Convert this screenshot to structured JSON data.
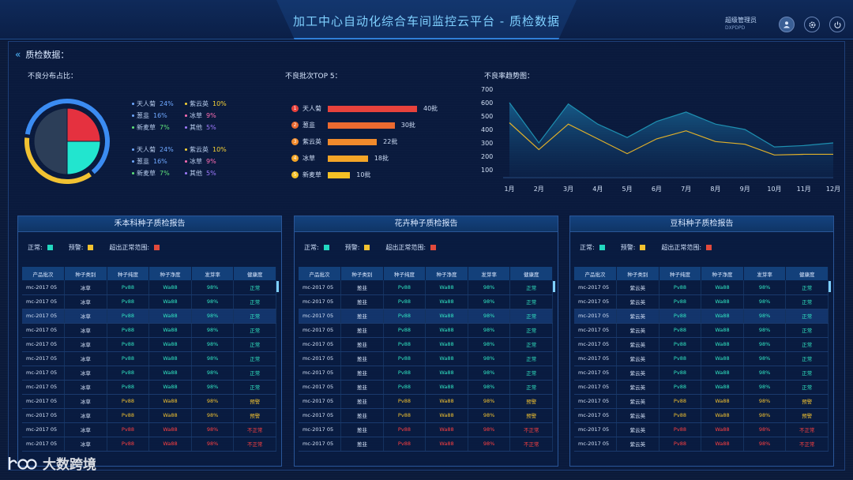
{
  "header": {
    "title": "加工中心自动化综合车间监控云平台 - 质检数据",
    "user_name": "超级管理员",
    "user_id": "DXPDPD"
  },
  "section": {
    "title": "质检数据："
  },
  "defect_distribution": {
    "title": "不良分布占比：",
    "slices": [
      {
        "name": "slice-a",
        "value": 25,
        "color": "#e5313f"
      },
      {
        "name": "slice-b",
        "value": 25,
        "color": "#22e5cf"
      },
      {
        "name": "slice-c",
        "value": 50,
        "color": "#2c3e58"
      }
    ],
    "ring_colors": [
      "#3b8cf2",
      "#f1c232"
    ],
    "legend_groups": [
      [
        [
          {
            "label": "天人菊",
            "pct": "24%",
            "color": "#6fa8ff"
          },
          {
            "label": "紫云英",
            "pct": "10%",
            "color": "#f7d336"
          }
        ],
        [
          {
            "label": "葱韭",
            "pct": "16%",
            "color": "#6fa8ff"
          },
          {
            "label": "冰草",
            "pct": "9%",
            "color": "#ff6db4"
          }
        ],
        [
          {
            "label": "新麦草",
            "pct": "7%",
            "color": "#5ee37a"
          },
          {
            "label": "其他",
            "pct": "5%",
            "color": "#a07bff"
          }
        ]
      ],
      [
        [
          {
            "label": "天人菊",
            "pct": "24%",
            "color": "#6fa8ff"
          },
          {
            "label": "紫云英",
            "pct": "10%",
            "color": "#f7d336"
          }
        ],
        [
          {
            "label": "葱韭",
            "pct": "16%",
            "color": "#6fa8ff"
          },
          {
            "label": "冰草",
            "pct": "9%",
            "color": "#ff6db4"
          }
        ],
        [
          {
            "label": "新麦草",
            "pct": "7%",
            "color": "#5ee37a"
          },
          {
            "label": "其他",
            "pct": "5%",
            "color": "#a07bff"
          }
        ]
      ]
    ]
  },
  "top5": {
    "title": "不良批次TOP 5：",
    "max": 40,
    "items": [
      {
        "rank": "1",
        "name": "天人菊",
        "value": 40,
        "label": "40批",
        "color": "#e8423c"
      },
      {
        "rank": "2",
        "name": "葱韭",
        "value": 30,
        "label": "30批",
        "color": "#ec6a30"
      },
      {
        "rank": "3",
        "name": "紫云英",
        "value": 22,
        "label": "22批",
        "color": "#f08a2c"
      },
      {
        "rank": "4",
        "name": "冰草",
        "value": 18,
        "label": "18批",
        "color": "#f3a527"
      },
      {
        "rank": "5",
        "name": "新麦草",
        "value": 10,
        "label": "10批",
        "color": "#f4c025"
      }
    ]
  },
  "chart_data": {
    "type": "area",
    "title": "不良率趋势图：",
    "categories": [
      "1月",
      "2月",
      "3月",
      "4月",
      "5月",
      "6月",
      "7月",
      "8月",
      "9月",
      "10月",
      "11月",
      "12月"
    ],
    "yticks": [
      "100",
      "200",
      "300",
      "400",
      "500",
      "600",
      "700"
    ],
    "ylim": [
      100,
      700
    ],
    "series": [
      {
        "values": [
          600,
          300,
          590,
          440,
          340,
          460,
          530,
          440,
          400,
          270,
          280,
          300
        ],
        "color": "#1e8fb0"
      },
      {
        "values": [
          450,
          250,
          440,
          330,
          220,
          330,
          390,
          310,
          290,
          210,
          215,
          215
        ],
        "color": "#e0b02a"
      }
    ]
  },
  "legend_labels": {
    "normal": "正常:",
    "warn": "预警:",
    "out": "超出正常范围:"
  },
  "status_colors": {
    "normal": "#22d8c0",
    "warn": "#f2c230",
    "out": "#e24a3c"
  },
  "table_headers": [
    "产品批次",
    "种子类别",
    "种子纯度",
    "种子净度",
    "发芽率",
    "健康度"
  ],
  "panels": [
    {
      "title": "禾本科种子质检报告",
      "rows": [
        {
          "batch": "mc-2017 05",
          "kind": "冰草",
          "purity": "Pv88",
          "clean": "Wa88",
          "rate": "98%",
          "health": "正常",
          "status": "normal"
        },
        {
          "batch": "mc-2017 05",
          "kind": "冰草",
          "purity": "Pv88",
          "clean": "Wa88",
          "rate": "98%",
          "health": "正常",
          "status": "normal"
        },
        {
          "batch": "mc-2017 05",
          "kind": "冰草",
          "purity": "Pv88",
          "clean": "Wa88",
          "rate": "98%",
          "health": "正常",
          "status": "normal"
        },
        {
          "batch": "mc-2017 05",
          "kind": "冰草",
          "purity": "Pv88",
          "clean": "Wa88",
          "rate": "98%",
          "health": "正常",
          "status": "normal"
        },
        {
          "batch": "mc-2017 05",
          "kind": "冰草",
          "purity": "Pv88",
          "clean": "Wa88",
          "rate": "98%",
          "health": "正常",
          "status": "normal"
        },
        {
          "batch": "mc-2017 05",
          "kind": "冰草",
          "purity": "Pv88",
          "clean": "Wa88",
          "rate": "98%",
          "health": "正常",
          "status": "normal"
        },
        {
          "batch": "mc-2017 05",
          "kind": "冰草",
          "purity": "Pv88",
          "clean": "Wa88",
          "rate": "98%",
          "health": "正常",
          "status": "normal"
        },
        {
          "batch": "mc-2017 05",
          "kind": "冰草",
          "purity": "Pv88",
          "clean": "Wa88",
          "rate": "98%",
          "health": "正常",
          "status": "normal"
        },
        {
          "batch": "mc-2017 05",
          "kind": "冰草",
          "purity": "Pv88",
          "clean": "Wa88",
          "rate": "98%",
          "health": "预警",
          "status": "warn"
        },
        {
          "batch": "mc-2017 05",
          "kind": "冰草",
          "purity": "Pv88",
          "clean": "Wa88",
          "rate": "98%",
          "health": "预警",
          "status": "warn"
        },
        {
          "batch": "mc-2017 05",
          "kind": "冰草",
          "purity": "Pv88",
          "clean": "Wa88",
          "rate": "98%",
          "health": "不正常",
          "status": "bad"
        },
        {
          "batch": "mc-2017 05",
          "kind": "冰草",
          "purity": "Pv88",
          "clean": "Wa88",
          "rate": "98%",
          "health": "不正常",
          "status": "bad"
        }
      ]
    },
    {
      "title": "花卉种子质检报告",
      "rows": [
        {
          "batch": "mc-2017 05",
          "kind": "葱韭",
          "purity": "Pv88",
          "clean": "Wa88",
          "rate": "98%",
          "health": "正常",
          "status": "normal"
        },
        {
          "batch": "mc-2017 05",
          "kind": "葱韭",
          "purity": "Pv88",
          "clean": "Wa88",
          "rate": "98%",
          "health": "正常",
          "status": "normal"
        },
        {
          "batch": "mc-2017 05",
          "kind": "葱韭",
          "purity": "Pv88",
          "clean": "Wa88",
          "rate": "98%",
          "health": "正常",
          "status": "normal"
        },
        {
          "batch": "mc-2017 05",
          "kind": "葱韭",
          "purity": "Pv88",
          "clean": "Wa88",
          "rate": "98%",
          "health": "正常",
          "status": "normal"
        },
        {
          "batch": "mc-2017 05",
          "kind": "葱韭",
          "purity": "Pv88",
          "clean": "Wa88",
          "rate": "98%",
          "health": "正常",
          "status": "normal"
        },
        {
          "batch": "mc-2017 05",
          "kind": "葱韭",
          "purity": "Pv88",
          "clean": "Wa88",
          "rate": "98%",
          "health": "正常",
          "status": "normal"
        },
        {
          "batch": "mc-2017 05",
          "kind": "葱韭",
          "purity": "Pv88",
          "clean": "Wa88",
          "rate": "98%",
          "health": "正常",
          "status": "normal"
        },
        {
          "batch": "mc-2017 05",
          "kind": "葱韭",
          "purity": "Pv88",
          "clean": "Wa88",
          "rate": "98%",
          "health": "正常",
          "status": "normal"
        },
        {
          "batch": "mc-2017 05",
          "kind": "葱韭",
          "purity": "Pv88",
          "clean": "Wa88",
          "rate": "98%",
          "health": "预警",
          "status": "warn"
        },
        {
          "batch": "mc-2017 05",
          "kind": "葱韭",
          "purity": "Pv88",
          "clean": "Wa88",
          "rate": "98%",
          "health": "预警",
          "status": "warn"
        },
        {
          "batch": "mc-2017 05",
          "kind": "葱韭",
          "purity": "Pv88",
          "clean": "Wa88",
          "rate": "98%",
          "health": "不正常",
          "status": "bad"
        },
        {
          "batch": "mc-2017 05",
          "kind": "葱韭",
          "purity": "Pv88",
          "clean": "Wa88",
          "rate": "98%",
          "health": "不正常",
          "status": "bad"
        }
      ]
    },
    {
      "title": "豆科种子质检报告",
      "rows": [
        {
          "batch": "mc-2017 05",
          "kind": "紫云英",
          "purity": "Pv88",
          "clean": "Wa88",
          "rate": "98%",
          "health": "正常",
          "status": "normal"
        },
        {
          "batch": "mc-2017 05",
          "kind": "紫云英",
          "purity": "Pv88",
          "clean": "Wa88",
          "rate": "98%",
          "health": "正常",
          "status": "normal"
        },
        {
          "batch": "mc-2017 05",
          "kind": "紫云英",
          "purity": "Pv88",
          "clean": "Wa88",
          "rate": "98%",
          "health": "正常",
          "status": "normal"
        },
        {
          "batch": "mc-2017 05",
          "kind": "紫云英",
          "purity": "Pv88",
          "clean": "Wa88",
          "rate": "98%",
          "health": "正常",
          "status": "normal"
        },
        {
          "batch": "mc-2017 05",
          "kind": "紫云英",
          "purity": "Pv88",
          "clean": "Wa88",
          "rate": "98%",
          "health": "正常",
          "status": "normal"
        },
        {
          "batch": "mc-2017 05",
          "kind": "紫云英",
          "purity": "Pv88",
          "clean": "Wa88",
          "rate": "98%",
          "health": "正常",
          "status": "normal"
        },
        {
          "batch": "mc-2017 05",
          "kind": "紫云英",
          "purity": "Pv88",
          "clean": "Wa88",
          "rate": "98%",
          "health": "正常",
          "status": "normal"
        },
        {
          "batch": "mc-2017 05",
          "kind": "紫云英",
          "purity": "Pv88",
          "clean": "Wa88",
          "rate": "98%",
          "health": "正常",
          "status": "normal"
        },
        {
          "batch": "mc-2017 05",
          "kind": "紫云英",
          "purity": "Pv88",
          "clean": "Wa88",
          "rate": "98%",
          "health": "预警",
          "status": "warn"
        },
        {
          "batch": "mc-2017 05",
          "kind": "紫云英",
          "purity": "Pv88",
          "clean": "Wa88",
          "rate": "98%",
          "health": "预警",
          "status": "warn"
        },
        {
          "batch": "mc-2017 05",
          "kind": "紫云英",
          "purity": "Pv88",
          "clean": "Wa88",
          "rate": "98%",
          "health": "不正常",
          "status": "bad"
        },
        {
          "batch": "mc-2017 05",
          "kind": "紫云英",
          "purity": "Pv88",
          "clean": "Wa88",
          "rate": "98%",
          "health": "不正常",
          "status": "bad"
        }
      ]
    }
  ],
  "watermark": {
    "text": "大数跨境",
    "logo_icon": "watermark-logo-icon"
  }
}
